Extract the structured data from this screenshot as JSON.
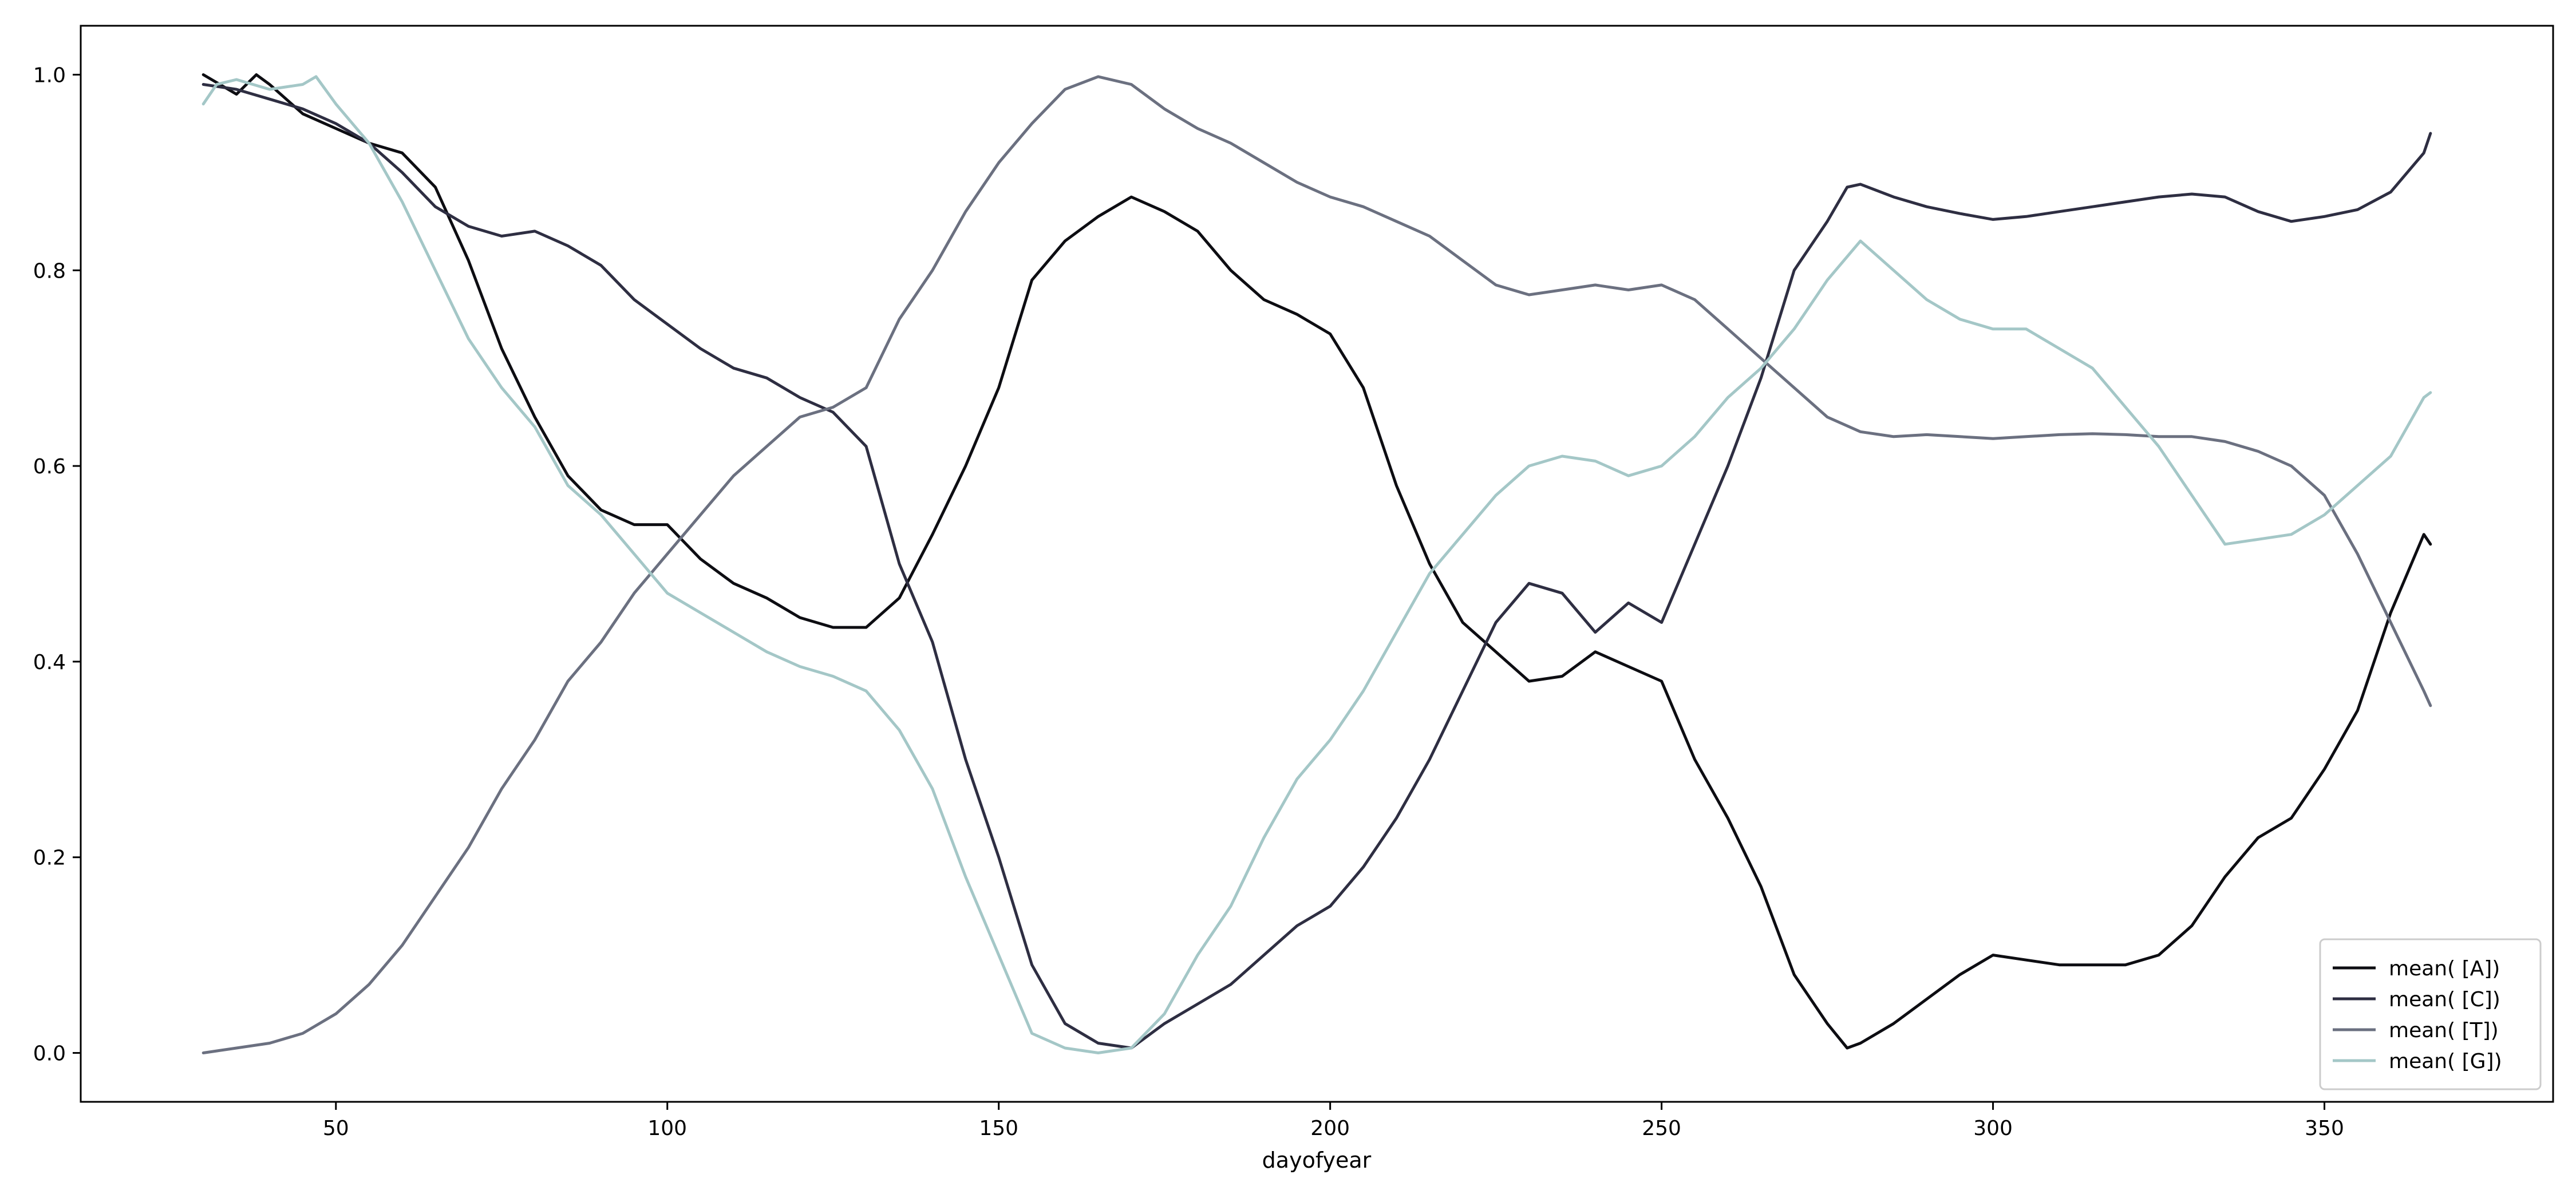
{
  "chart_data": {
    "type": "line",
    "title": "",
    "xlabel": "dayofyear",
    "ylabel": "",
    "xlim": [
      11.5,
      384.5
    ],
    "ylim": [
      -0.05,
      1.05
    ],
    "xticks": [
      50,
      100,
      150,
      200,
      250,
      300,
      350
    ],
    "yticks": [
      0.0,
      0.2,
      0.4,
      0.6,
      0.8,
      1.0
    ],
    "xtick_labels": [
      "50",
      "100",
      "150",
      "200",
      "250",
      "300",
      "350"
    ],
    "ytick_labels": [
      "0.0",
      "0.2",
      "0.4",
      "0.6",
      "0.8",
      "1.0"
    ],
    "grid": false,
    "legend_position": "lower-right",
    "series": [
      {
        "name": "mean( [A])",
        "color": "#0d0d12",
        "x": [
          30,
          35,
          38,
          40,
          45,
          50,
          55,
          60,
          65,
          70,
          75,
          80,
          85,
          90,
          95,
          100,
          105,
          110,
          115,
          120,
          125,
          130,
          135,
          140,
          145,
          150,
          155,
          160,
          165,
          170,
          175,
          180,
          185,
          190,
          195,
          200,
          205,
          210,
          215,
          220,
          225,
          230,
          235,
          240,
          245,
          250,
          255,
          260,
          265,
          270,
          275,
          278,
          280,
          285,
          290,
          295,
          300,
          305,
          310,
          315,
          320,
          325,
          330,
          335,
          340,
          345,
          350,
          355,
          360,
          365,
          366
        ],
        "y": [
          1.0,
          0.98,
          1.0,
          0.99,
          0.96,
          0.945,
          0.93,
          0.92,
          0.885,
          0.81,
          0.72,
          0.65,
          0.59,
          0.555,
          0.54,
          0.54,
          0.505,
          0.48,
          0.465,
          0.445,
          0.435,
          0.435,
          0.465,
          0.53,
          0.6,
          0.68,
          0.79,
          0.83,
          0.855,
          0.875,
          0.86,
          0.84,
          0.8,
          0.77,
          0.755,
          0.735,
          0.68,
          0.58,
          0.5,
          0.44,
          0.41,
          0.38,
          0.385,
          0.41,
          0.395,
          0.38,
          0.3,
          0.24,
          0.17,
          0.08,
          0.03,
          0.005,
          0.01,
          0.03,
          0.055,
          0.08,
          0.1,
          0.095,
          0.09,
          0.09,
          0.09,
          0.1,
          0.13,
          0.18,
          0.22,
          0.24,
          0.29,
          0.35,
          0.45,
          0.53,
          0.52
        ]
      },
      {
        "name": "mean( [C])",
        "color": "#2e2e42",
        "x": [
          30,
          35,
          40,
          45,
          50,
          55,
          60,
          65,
          70,
          75,
          80,
          85,
          90,
          95,
          100,
          105,
          110,
          115,
          120,
          125,
          130,
          135,
          140,
          145,
          150,
          155,
          160,
          165,
          170,
          175,
          180,
          185,
          190,
          195,
          200,
          205,
          210,
          215,
          220,
          225,
          230,
          235,
          240,
          245,
          250,
          255,
          260,
          265,
          270,
          275,
          278,
          280,
          285,
          290,
          295,
          300,
          305,
          310,
          315,
          320,
          325,
          330,
          335,
          340,
          345,
          350,
          355,
          360,
          365,
          366
        ],
        "y": [
          0.99,
          0.985,
          0.975,
          0.965,
          0.95,
          0.93,
          0.9,
          0.865,
          0.845,
          0.835,
          0.84,
          0.825,
          0.805,
          0.77,
          0.745,
          0.72,
          0.7,
          0.69,
          0.67,
          0.655,
          0.62,
          0.5,
          0.42,
          0.3,
          0.2,
          0.09,
          0.03,
          0.01,
          0.005,
          0.03,
          0.05,
          0.07,
          0.1,
          0.13,
          0.15,
          0.19,
          0.24,
          0.3,
          0.37,
          0.44,
          0.48,
          0.47,
          0.43,
          0.46,
          0.44,
          0.52,
          0.6,
          0.69,
          0.8,
          0.85,
          0.885,
          0.888,
          0.875,
          0.865,
          0.858,
          0.852,
          0.855,
          0.86,
          0.865,
          0.87,
          0.875,
          0.878,
          0.875,
          0.86,
          0.85,
          0.855,
          0.862,
          0.88,
          0.92,
          0.94
        ]
      },
      {
        "name": "mean( [T])",
        "color": "#6b7080",
        "x": [
          30,
          35,
          40,
          45,
          50,
          55,
          60,
          65,
          70,
          75,
          80,
          85,
          90,
          95,
          100,
          105,
          110,
          115,
          120,
          125,
          130,
          135,
          140,
          145,
          150,
          155,
          160,
          165,
          170,
          175,
          180,
          185,
          190,
          195,
          200,
          205,
          210,
          215,
          220,
          225,
          230,
          235,
          240,
          245,
          250,
          255,
          260,
          265,
          270,
          275,
          280,
          285,
          290,
          295,
          300,
          305,
          310,
          315,
          320,
          325,
          330,
          335,
          340,
          345,
          350,
          355,
          360,
          365,
          366
        ],
        "y": [
          0.0,
          0.005,
          0.01,
          0.02,
          0.04,
          0.07,
          0.11,
          0.16,
          0.21,
          0.27,
          0.32,
          0.38,
          0.42,
          0.47,
          0.51,
          0.55,
          0.59,
          0.62,
          0.65,
          0.66,
          0.68,
          0.75,
          0.8,
          0.86,
          0.91,
          0.95,
          0.985,
          0.998,
          0.99,
          0.965,
          0.945,
          0.93,
          0.91,
          0.89,
          0.875,
          0.865,
          0.85,
          0.835,
          0.81,
          0.785,
          0.775,
          0.78,
          0.785,
          0.78,
          0.785,
          0.77,
          0.74,
          0.71,
          0.68,
          0.65,
          0.635,
          0.63,
          0.632,
          0.63,
          0.628,
          0.63,
          0.632,
          0.633,
          0.632,
          0.63,
          0.63,
          0.625,
          0.615,
          0.6,
          0.57,
          0.51,
          0.44,
          0.37,
          0.355
        ]
      },
      {
        "name": "mean( [G])",
        "color": "#a4c7c7",
        "x": [
          30,
          32,
          35,
          40,
          45,
          47,
          50,
          55,
          60,
          65,
          70,
          75,
          80,
          85,
          90,
          95,
          100,
          105,
          110,
          115,
          120,
          125,
          130,
          135,
          140,
          145,
          150,
          155,
          160,
          165,
          170,
          175,
          180,
          185,
          190,
          195,
          200,
          205,
          210,
          215,
          220,
          225,
          230,
          235,
          240,
          245,
          250,
          255,
          260,
          265,
          270,
          275,
          280,
          285,
          290,
          295,
          300,
          305,
          310,
          315,
          320,
          325,
          330,
          335,
          340,
          345,
          350,
          355,
          360,
          365,
          366
        ],
        "y": [
          0.97,
          0.99,
          0.995,
          0.985,
          0.99,
          0.998,
          0.97,
          0.93,
          0.87,
          0.8,
          0.73,
          0.68,
          0.64,
          0.58,
          0.55,
          0.51,
          0.47,
          0.45,
          0.43,
          0.41,
          0.395,
          0.385,
          0.37,
          0.33,
          0.27,
          0.18,
          0.1,
          0.02,
          0.005,
          0.0,
          0.005,
          0.04,
          0.1,
          0.15,
          0.22,
          0.28,
          0.32,
          0.37,
          0.43,
          0.49,
          0.53,
          0.57,
          0.6,
          0.61,
          0.605,
          0.59,
          0.6,
          0.63,
          0.67,
          0.7,
          0.74,
          0.79,
          0.83,
          0.8,
          0.77,
          0.75,
          0.74,
          0.74,
          0.72,
          0.7,
          0.66,
          0.62,
          0.57,
          0.52,
          0.525,
          0.53,
          0.55,
          0.58,
          0.61,
          0.67,
          0.675
        ]
      }
    ]
  }
}
